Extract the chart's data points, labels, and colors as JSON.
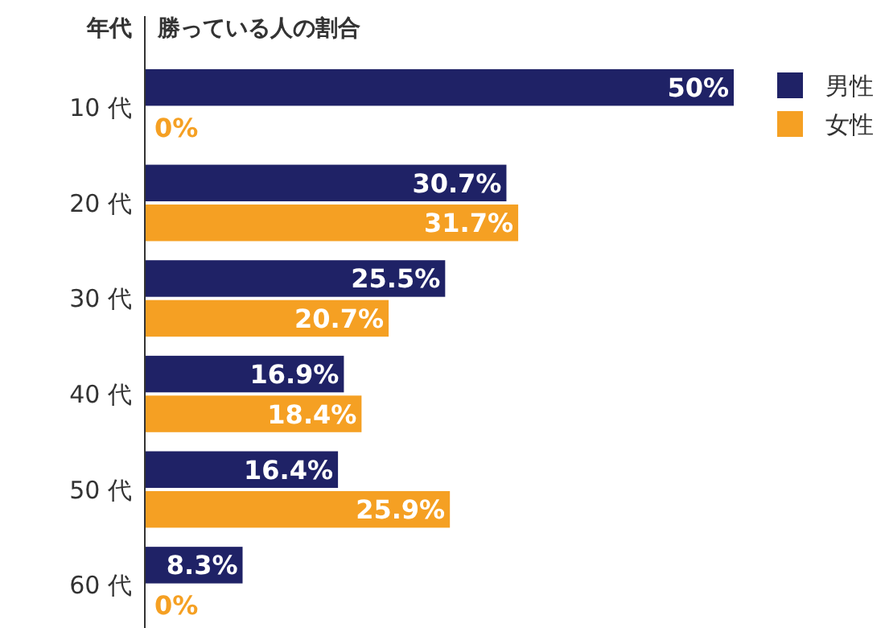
{
  "chart_data": {
    "type": "bar",
    "orientation": "horizontal",
    "ylabel": "年代",
    "xlabel": "勝っている人の割合",
    "categories": [
      "10 代",
      "20 代",
      "30 代",
      "40 代",
      "50 代",
      "60 代"
    ],
    "series": [
      {
        "name": "男性",
        "color": "#1f2266",
        "values": [
          50,
          30.7,
          25.5,
          16.9,
          16.4,
          8.3
        ],
        "value_labels": [
          "50%",
          "30.7%",
          "25.5%",
          "16.9%",
          "16.4%",
          "8.3%"
        ]
      },
      {
        "name": "女性",
        "color": "#f5a023",
        "values": [
          0,
          31.7,
          20.7,
          18.4,
          25.9,
          0
        ],
        "value_labels": [
          "0%",
          "31.7%",
          "20.7%",
          "18.4%",
          "25.9%",
          "0%"
        ]
      }
    ],
    "legend": "top right"
  }
}
